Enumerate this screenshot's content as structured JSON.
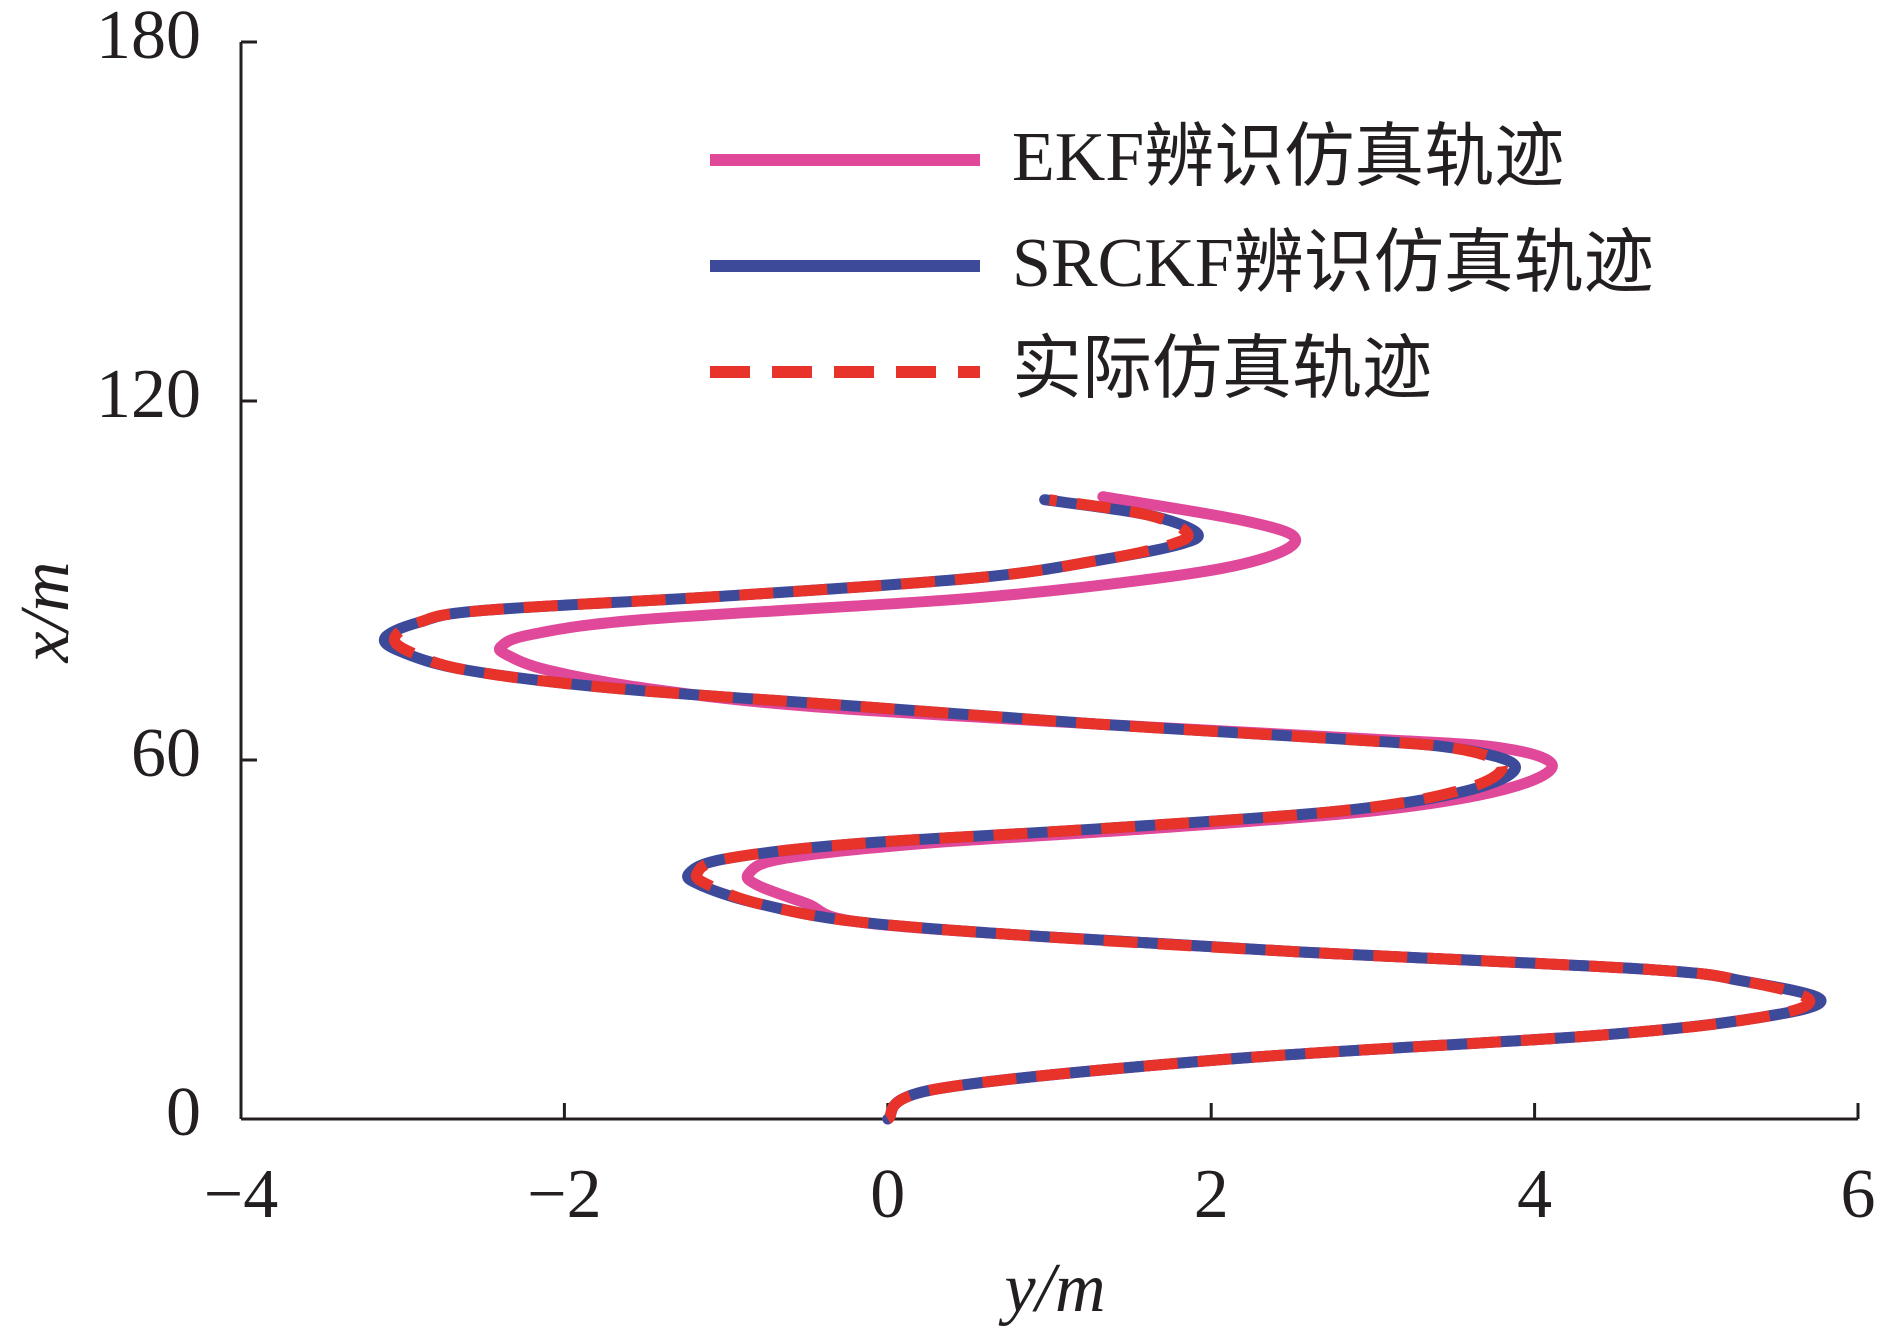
{
  "chart_data": {
    "type": "line",
    "xlabel": "y/m",
    "ylabel": "x/m",
    "xlim": [
      -4,
      6
    ],
    "xticks": [
      {
        "value": -4,
        "label": "−4"
      },
      {
        "value": -2,
        "label": "−2"
      },
      0,
      2,
      4,
      6
    ],
    "ylim": [
      0,
      180
    ],
    "yticks": [
      0,
      60,
      120,
      180
    ],
    "legend": "upper right",
    "series": [
      {
        "name": "EKF辨识仿真轨迹",
        "color": "#e0489a",
        "dashed": false,
        "x": [
          0,
          0.3,
          2.1,
          4.4,
          5.4,
          5.77,
          5.3,
          4.7,
          2.5,
          0.95,
          -0.2,
          -0.5,
          -0.8,
          -0.86,
          -0.65,
          0.2,
          1.6,
          3.0,
          3.8,
          4.11,
          3.8,
          3.0,
          1.3,
          -0.5,
          -1.5,
          -2.1,
          -2.35,
          -2.39,
          -2.2,
          -1.5,
          0.5,
          1.7,
          2.3,
          2.52,
          2.2,
          1.33
        ],
        "values": [
          0,
          5,
          10,
          14,
          17,
          19.9,
          23,
          25,
          28,
          30.5,
          33,
          36,
          39,
          41,
          43.5,
          46,
          48.5,
          51.5,
          55,
          59,
          62,
          63.5,
          66,
          69,
          72,
          75,
          77.5,
          79,
          81,
          83.5,
          87,
          90.5,
          93.5,
          97,
          100,
          104
        ]
      },
      {
        "name": "SRCKF辨识仿真轨迹",
        "color": "#3d4a9a",
        "dashed": false,
        "x": [
          0,
          0.3,
          2.1,
          4.4,
          5.4,
          5.77,
          5.3,
          4.7,
          2.5,
          0.95,
          -0.2,
          -0.8,
          -1.15,
          -1.23,
          -1.0,
          -0.2,
          1.3,
          2.8,
          3.6,
          3.88,
          3.5,
          2.8,
          1.3,
          -0.2,
          -1.7,
          -2.6,
          -3.0,
          -3.11,
          -2.9,
          -2.5,
          -0.95,
          0.57,
          1.33,
          1.8,
          1.91,
          1.6,
          0.97
        ],
        "values": [
          0,
          5,
          10,
          14,
          17,
          19.9,
          23,
          25,
          28,
          30.5,
          33,
          36,
          39,
          41,
          43.5,
          46,
          48.5,
          51.5,
          55,
          59,
          62,
          63.5,
          66,
          69,
          72,
          75,
          78,
          80.4,
          83,
          85,
          87.5,
          90.5,
          93.5,
          96,
          98,
          101,
          103.5
        ]
      },
      {
        "name": "实际仿真轨迹",
        "color": "#e8332a",
        "dashed": true,
        "x": [
          0,
          0.3,
          2.1,
          4.4,
          5.4,
          5.7,
          5.3,
          4.7,
          2.5,
          0.95,
          -0.2,
          -0.8,
          -1.1,
          -1.18,
          -1.0,
          -0.2,
          1.3,
          2.8,
          3.55,
          3.8,
          3.5,
          2.8,
          1.3,
          -0.2,
          -1.7,
          -2.6,
          -2.95,
          -3.05,
          -2.9,
          -2.5,
          -0.95,
          0.57,
          1.33,
          1.75,
          1.85,
          1.6,
          1.0
        ],
        "values": [
          0,
          5,
          10,
          14,
          17,
          19.9,
          23,
          25,
          28,
          30.5,
          33,
          36,
          39,
          41,
          43.5,
          46,
          48.5,
          51.5,
          55,
          59,
          62,
          63.5,
          66,
          69,
          72,
          75,
          78,
          80.4,
          83,
          85,
          87.5,
          90.5,
          93.5,
          96,
          98,
          101,
          103.5
        ]
      }
    ]
  }
}
